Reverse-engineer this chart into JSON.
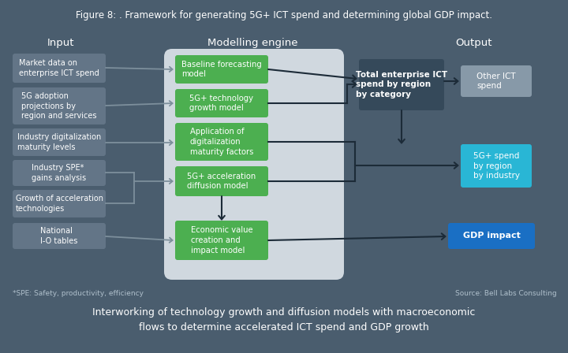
{
  "title": "Figure 8: . Framework for generating 5G+ ICT spend and determining global GDP impact.",
  "title_fontsize": 8.5,
  "bg_color": "#4a5d6e",
  "subtitle": "Interworking of technology growth and diffusion models with macroeconomic\nflows to determine accelerated ICT spend and GDP growth",
  "subtitle_fontsize": 9,
  "footnote_left": "*SPE: Safety, productivity, efficiency",
  "footnote_right": "Source: Bell Labs Consulting",
  "section_input": "Input",
  "section_engine": "Modelling engine",
  "section_output": "Output",
  "input_boxes": [
    "Market data on\nenterprise ICT spend",
    "5G adoption\nprojections by\nregion and services",
    "Industry digitalization\nmaturity levels",
    "Industry SPE*\ngains analysis",
    "Growth of acceleration\ntechnologies",
    "National\nI-O tables"
  ],
  "engine_boxes": [
    "Baseline forecasting\nmodel",
    "5G+ technology\ngrowth model",
    "Application of\ndigitalization\nmaturity factors",
    "5G+ acceleration\ndiffusion model",
    "Economic value\ncreation and\nimpact model"
  ],
  "output_boxes": [
    "Total enterprise ICT\nspend by region\nby category",
    "Other ICT\nspend",
    "5G+ spend\nby region\nby industry",
    "GDP impact"
  ],
  "input_box_color": "#637587",
  "engine_box_color": "#4caf50",
  "engine_bg_color": "#dce3ea",
  "output_dark_color": "#35495a",
  "output_grey_color": "#8799a8",
  "output_cyan_color": "#29b6d5",
  "output_blue_color": "#1a6fc4",
  "arrow_dark": "#1c2b38",
  "arrow_gray": "#7d8f9c"
}
